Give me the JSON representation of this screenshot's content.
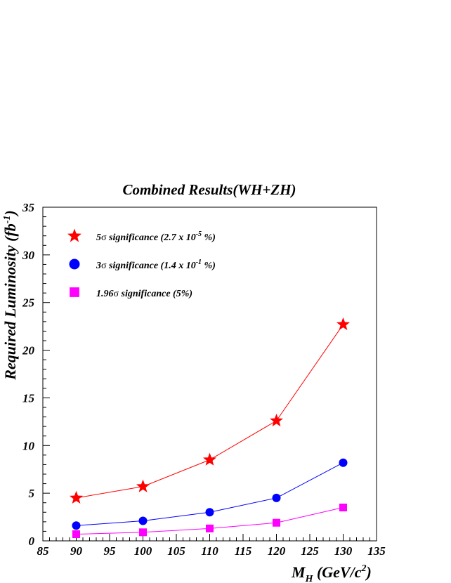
{
  "chart_data": {
    "type": "line",
    "title": "Combined Results(WH+ZH)",
    "ylabel": {
      "main": "Required Luminosity (fb",
      "sup": "-1",
      "tail": ")"
    },
    "xlabel": {
      "m": "M",
      "sub": "H",
      "unit": " (GeV/c",
      "sup": "2",
      "tail": ")"
    },
    "xlim": [
      85,
      135
    ],
    "ylim": [
      0,
      35
    ],
    "xticks": [
      85,
      90,
      95,
      100,
      105,
      110,
      115,
      120,
      125,
      130,
      135
    ],
    "yticks": [
      0,
      5,
      10,
      15,
      20,
      25,
      30,
      35
    ],
    "grid": false,
    "legend_position": "top-left",
    "x": [
      90,
      100,
      110,
      120,
      130
    ],
    "series": [
      {
        "label_parts": [
          "5",
          "σ",
          " significance (2.7 x 10",
          "-5",
          " %)"
        ],
        "marker": "star",
        "color": "#ff0000",
        "values": [
          4.5,
          5.7,
          8.5,
          12.6,
          22.7
        ]
      },
      {
        "label_parts": [
          "3",
          "σ",
          " significance (1.4 x 10",
          "-1",
          " %)"
        ],
        "marker": "circle",
        "color": "#0000ff",
        "values": [
          1.6,
          2.1,
          3.0,
          4.5,
          8.2
        ]
      },
      {
        "label_parts": [
          "1.96",
          "σ",
          " significance (5%)",
          "",
          ""
        ],
        "marker": "square",
        "color": "#ff00ff",
        "values": [
          0.7,
          0.9,
          1.3,
          1.9,
          3.5
        ]
      }
    ]
  }
}
